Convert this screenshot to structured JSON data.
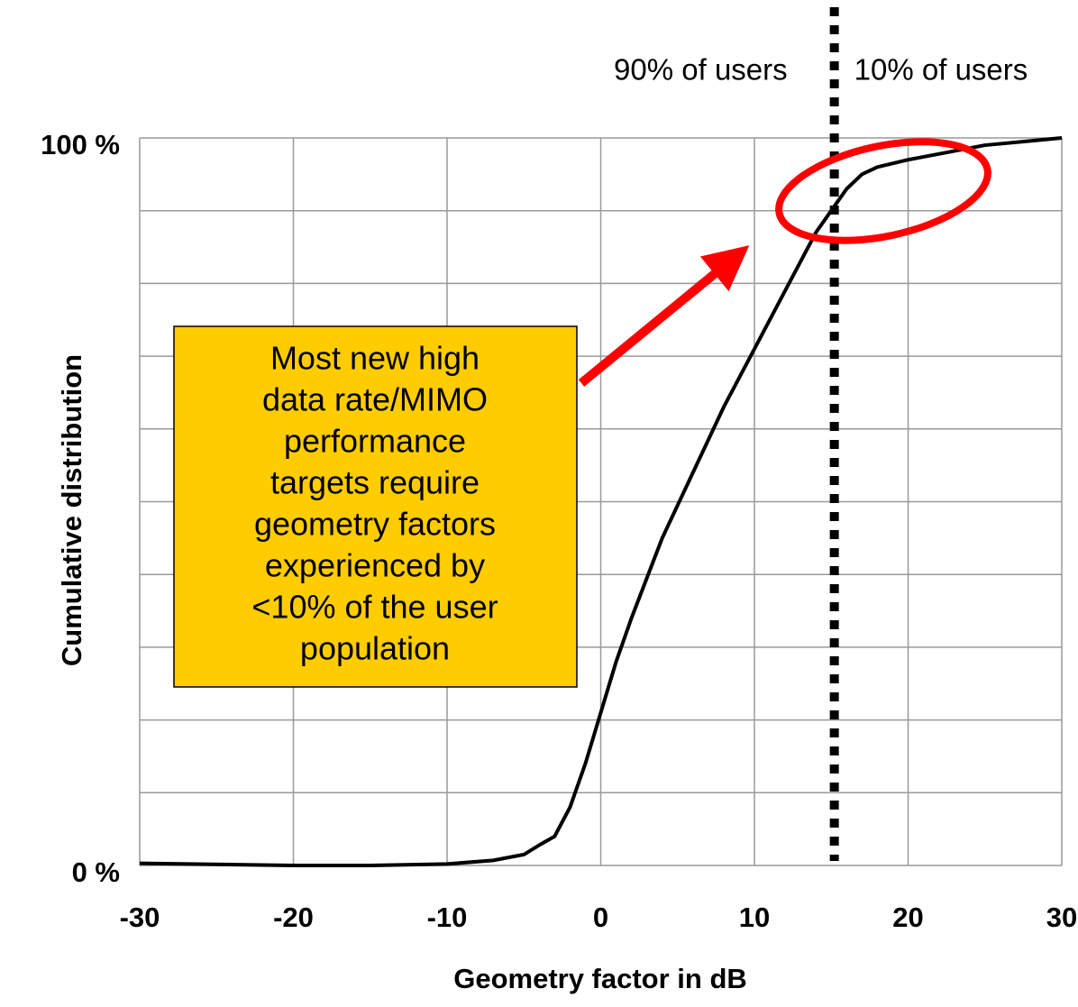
{
  "chart_data": {
    "type": "line",
    "xlabel": "Geometry factor in dB",
    "ylabel": "Cumulative distribution",
    "x": [
      -30,
      -20,
      -15,
      -10,
      -7,
      -5,
      -4,
      -3,
      -2,
      -1,
      0,
      1,
      2,
      4,
      6,
      8,
      10,
      12,
      13,
      14,
      15,
      16,
      17,
      18,
      20,
      25,
      30
    ],
    "series": [
      {
        "name": "CDF",
        "color": "#000000",
        "values": [
          0.3,
          0,
          0,
          0.2,
          0.7,
          1.5,
          2.8,
          4,
          8,
          14,
          21,
          28,
          34,
          45,
          54,
          63,
          71,
          79,
          83,
          87,
          90,
          93,
          95,
          96,
          97,
          99,
          100
        ]
      }
    ],
    "xlim": [
      -30,
      30
    ],
    "xticks": [
      -30,
      -20,
      -10,
      0,
      10,
      20,
      30
    ],
    "ylim": [
      0,
      100
    ],
    "yticks": [
      {
        "value": 0,
        "label": "0 %"
      },
      {
        "value": 100,
        "label": "100 %"
      }
    ],
    "ygrid": [
      10,
      20,
      30,
      40,
      50,
      60,
      70,
      80,
      90
    ],
    "grid": true,
    "threshold": {
      "x": 15.2,
      "left_label": "90% of users",
      "right_label": "10% of users"
    },
    "callout": [
      "Most new high",
      "data rate/MIMO",
      "performance",
      "targets require",
      "geometry factors",
      "experienced by",
      "<10% of the user",
      "population"
    ]
  }
}
